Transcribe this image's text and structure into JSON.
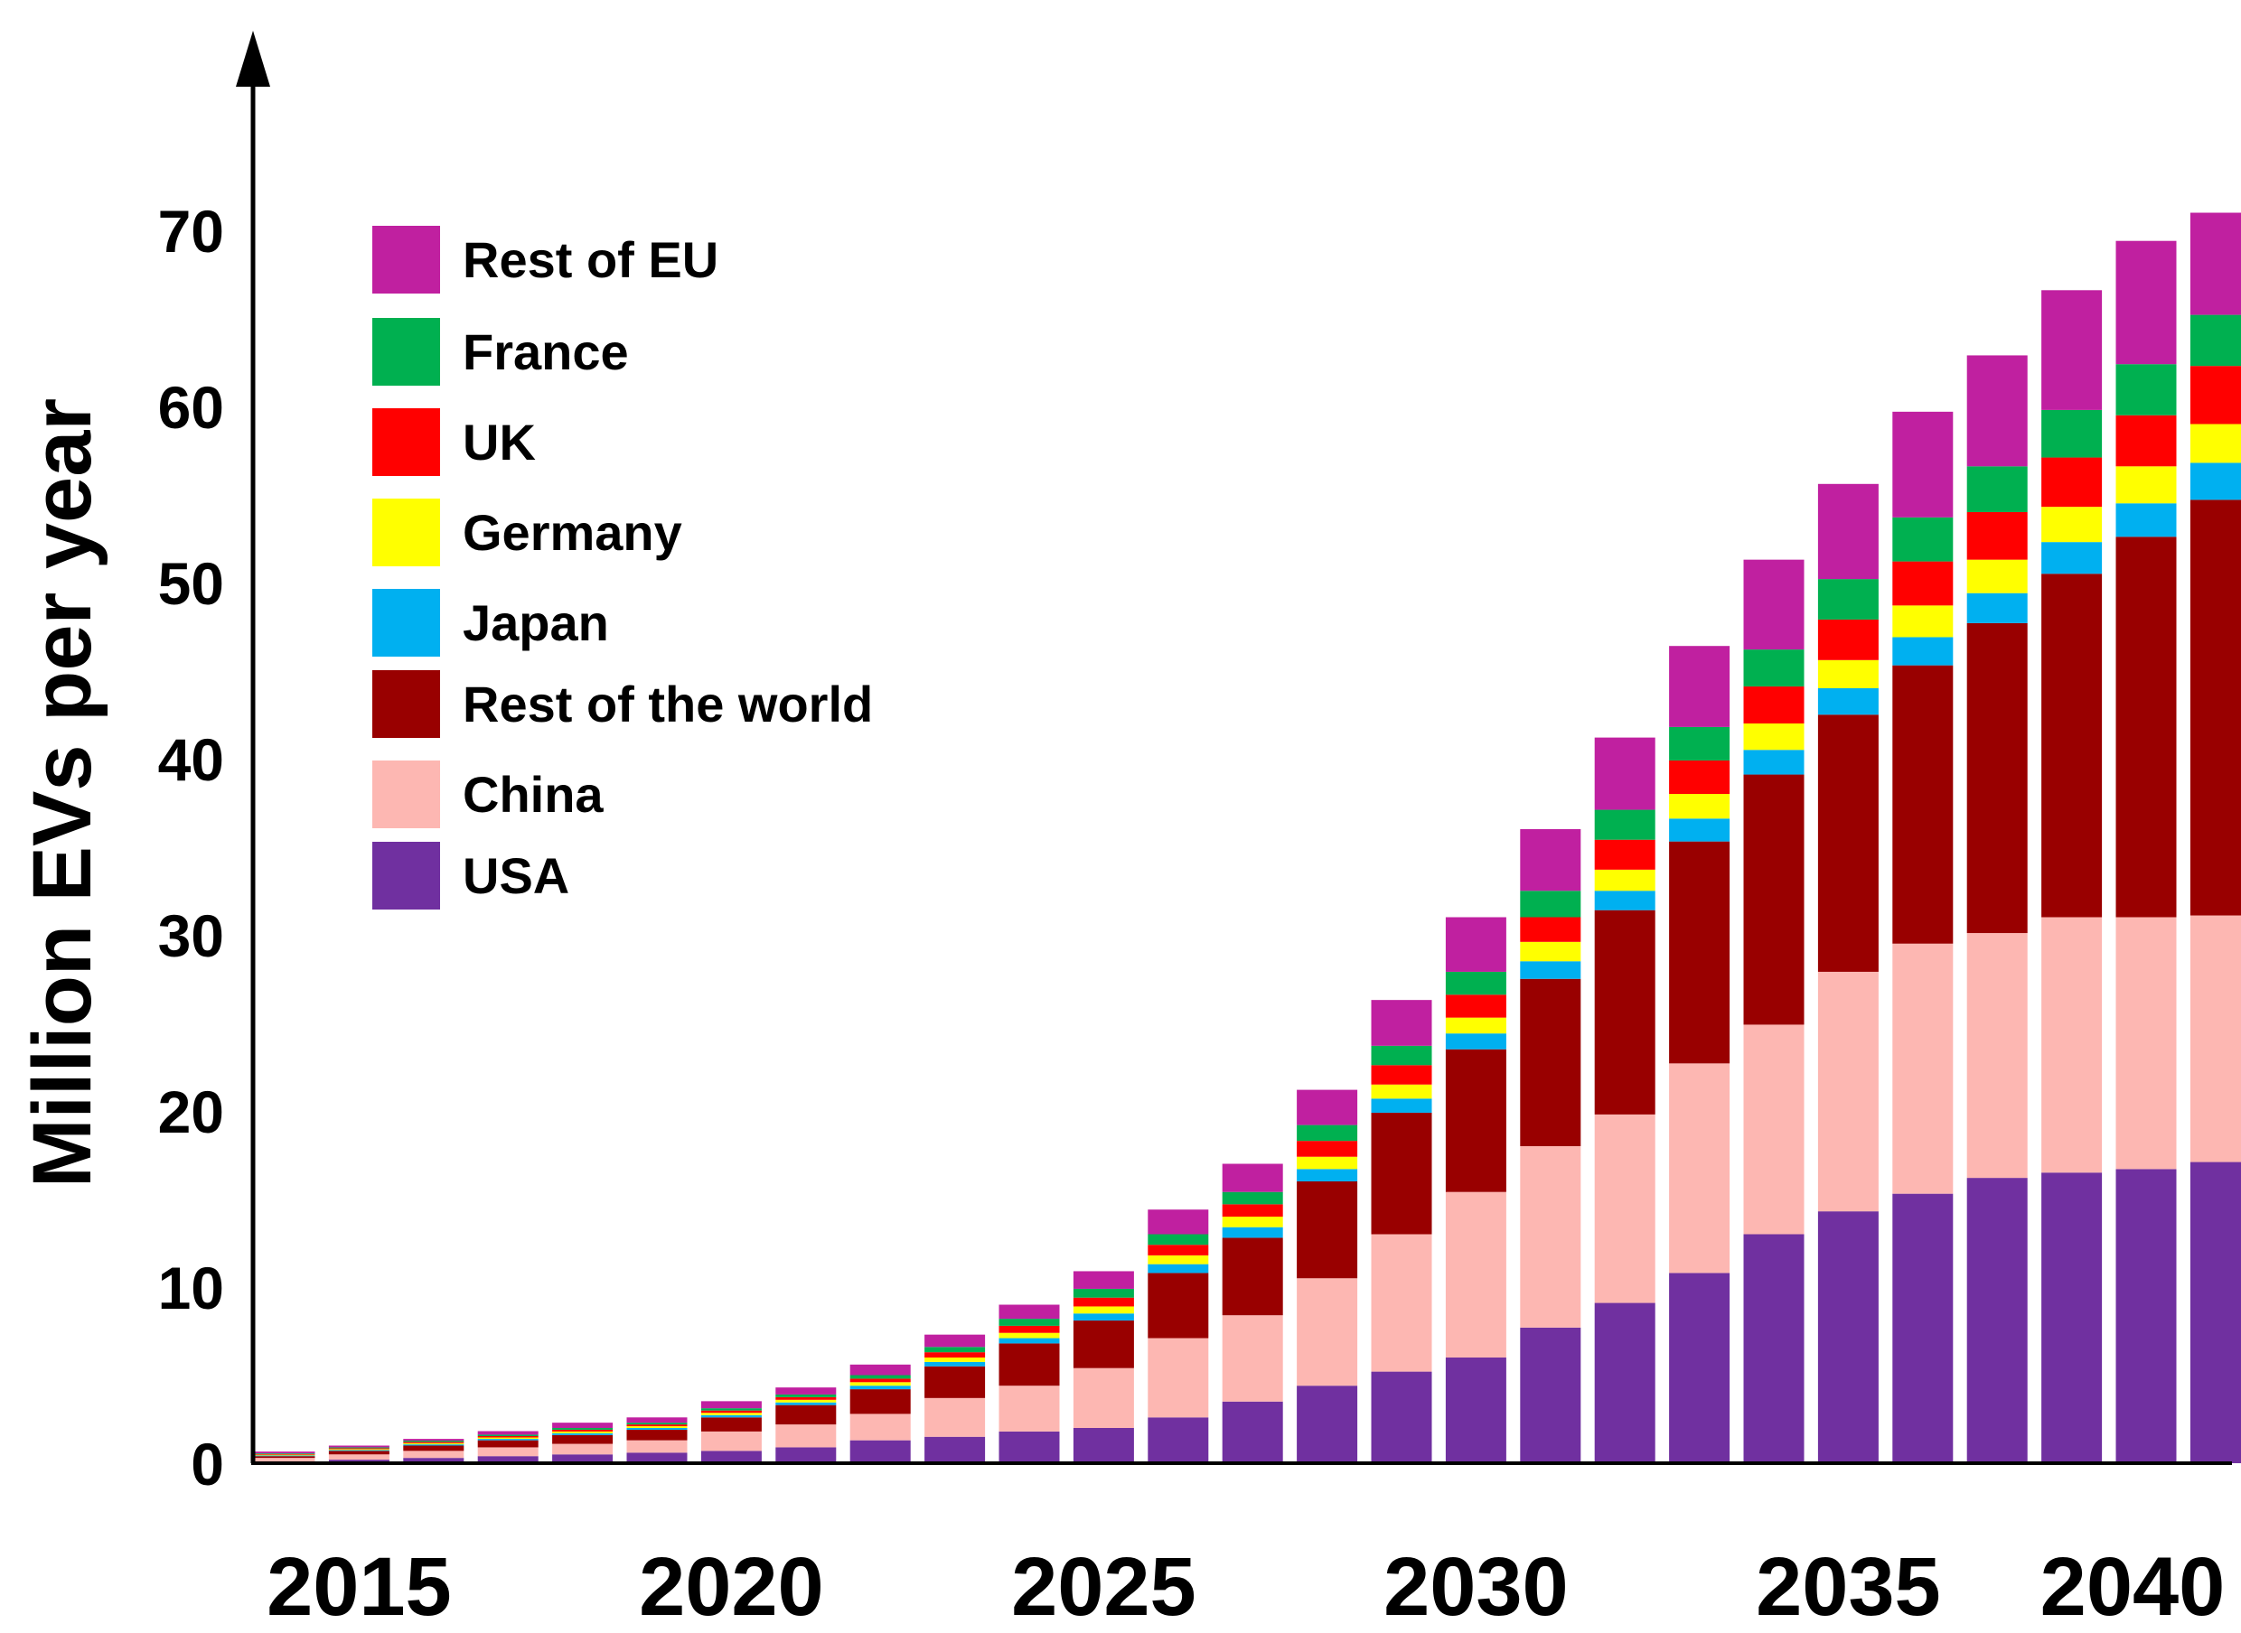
{
  "chart_data": {
    "type": "bar",
    "stacked": true,
    "title": "",
    "xlabel": "",
    "ylabel": "Million EVs per year",
    "ylim": [
      0,
      75
    ],
    "yticks": [
      "0",
      "10",
      "20",
      "30",
      "40",
      "50",
      "60",
      "70"
    ],
    "xticks": [
      "2015",
      "2020",
      "2025",
      "2030",
      "2035",
      "2040"
    ],
    "grid": false,
    "legend_position": "top-left",
    "categories": [
      "2014",
      "2015",
      "2016",
      "2017",
      "2018",
      "2019",
      "2020",
      "2021",
      "2022",
      "2023",
      "2024",
      "2025",
      "2026",
      "2027",
      "2028",
      "2029",
      "2030",
      "2031",
      "2032",
      "2033",
      "2034",
      "2035",
      "2036",
      "2037",
      "2038",
      "2039",
      "2040"
    ],
    "series": [
      {
        "name": "USA",
        "color": "#7030A0",
        "values": [
          0.1,
          0.2,
          0.3,
          0.4,
          0.5,
          0.6,
          0.7,
          0.9,
          1.3,
          1.5,
          1.8,
          2.0,
          2.6,
          3.5,
          4.4,
          5.2,
          6.0,
          7.7,
          9.1,
          10.8,
          13.0,
          14.3,
          15.3,
          16.2,
          16.5,
          16.7,
          17.1
        ]
      },
      {
        "name": "China",
        "color": "#FDB7B2",
        "values": [
          0.2,
          0.3,
          0.4,
          0.5,
          0.6,
          0.7,
          1.1,
          1.3,
          1.5,
          2.2,
          2.6,
          3.4,
          4.5,
          4.9,
          6.1,
          7.8,
          9.4,
          10.3,
          10.7,
          11.9,
          11.9,
          13.6,
          14.2,
          13.9,
          14.5,
          14.3,
          14.0
        ]
      },
      {
        "name": "Rest of the world",
        "color": "#990000",
        "values": [
          0.1,
          0.2,
          0.3,
          0.4,
          0.5,
          0.6,
          0.8,
          1.1,
          1.4,
          1.8,
          2.4,
          2.7,
          3.7,
          4.4,
          5.5,
          6.9,
          8.1,
          9.5,
          11.6,
          12.6,
          14.2,
          14.6,
          15.8,
          17.6,
          19.5,
          21.6,
          23.6
        ]
      },
      {
        "name": "Japan",
        "color": "#00B0F0",
        "values": [
          0.04,
          0.05,
          0.07,
          0.08,
          0.1,
          0.1,
          0.13,
          0.15,
          0.2,
          0.25,
          0.3,
          0.4,
          0.5,
          0.6,
          0.7,
          0.8,
          0.9,
          1.0,
          1.1,
          1.3,
          1.4,
          1.5,
          1.6,
          1.7,
          1.8,
          1.9,
          2.1
        ]
      },
      {
        "name": "Germany",
        "color": "#FFFF00",
        "values": [
          0.04,
          0.05,
          0.07,
          0.08,
          0.1,
          0.1,
          0.13,
          0.15,
          0.2,
          0.25,
          0.3,
          0.4,
          0.5,
          0.6,
          0.7,
          0.8,
          0.9,
          1.1,
          1.2,
          1.4,
          1.5,
          1.6,
          1.8,
          1.9,
          2.0,
          2.1,
          2.2
        ]
      },
      {
        "name": "UK",
        "color": "#FF0000",
        "values": [
          0.04,
          0.05,
          0.07,
          0.08,
          0.1,
          0.1,
          0.13,
          0.15,
          0.2,
          0.3,
          0.4,
          0.5,
          0.6,
          0.7,
          0.9,
          1.1,
          1.3,
          1.4,
          1.7,
          1.9,
          2.1,
          2.3,
          2.5,
          2.7,
          2.8,
          2.9,
          3.3
        ]
      },
      {
        "name": "France",
        "color": "#00B050",
        "values": [
          0.04,
          0.05,
          0.07,
          0.08,
          0.1,
          0.1,
          0.13,
          0.15,
          0.2,
          0.3,
          0.4,
          0.5,
          0.6,
          0.7,
          0.9,
          1.1,
          1.3,
          1.5,
          1.7,
          1.9,
          2.1,
          2.3,
          2.5,
          2.6,
          2.7,
          2.9,
          2.9
        ]
      },
      {
        "name": "Rest of EU",
        "color": "#C020A0",
        "values": [
          0.1,
          0.1,
          0.1,
          0.2,
          0.3,
          0.3,
          0.4,
          0.4,
          0.6,
          0.7,
          0.8,
          1.0,
          1.4,
          1.6,
          2.0,
          2.6,
          3.1,
          3.5,
          4.1,
          4.6,
          5.1,
          5.4,
          6.0,
          6.3,
          6.8,
          7.0,
          5.8
        ]
      }
    ]
  }
}
